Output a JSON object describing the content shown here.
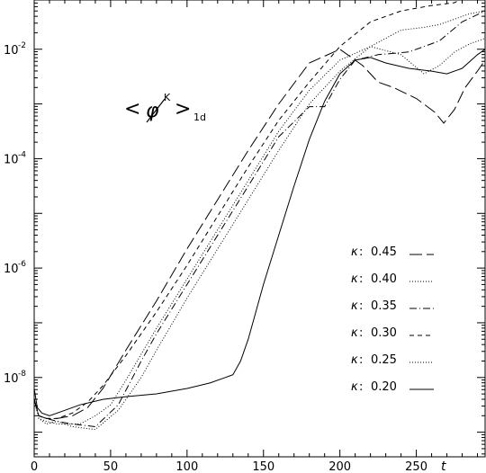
{
  "chart_data": {
    "type": "line",
    "title": "",
    "xlabel": "t",
    "ylabel": "",
    "xlim": [
      0,
      295
    ],
    "ylim_log10": [
      -9.45,
      -1.1
    ],
    "y_scale": "log",
    "x_ticks": [
      {
        "value": 0,
        "label": "0"
      },
      {
        "value": 50,
        "label": "50"
      },
      {
        "value": 100,
        "label": "100"
      },
      {
        "value": 150,
        "label": "150"
      },
      {
        "value": 200,
        "label": "200"
      },
      {
        "value": 250,
        "label": "250"
      }
    ],
    "y_ticks": [
      {
        "log10": -2,
        "base": "10",
        "exp": "-2"
      },
      {
        "log10": -4,
        "base": "10",
        "exp": "-4"
      },
      {
        "log10": -6,
        "base": "10",
        "exp": "-6"
      },
      {
        "log10": -8,
        "base": "10",
        "exp": "-8"
      }
    ],
    "annotation": {
      "open": "<",
      "phi": "φ",
      "sup": "K",
      "close": ">",
      "sub": "1d"
    },
    "legend": [
      {
        "kappa": "κ",
        "label": "0.45",
        "dash": "14 5"
      },
      {
        "kappa": "κ",
        "label": "0.40",
        "dash": "1 2"
      },
      {
        "kappa": "κ",
        "label": "0.35",
        "dash": "8 3 1 3"
      },
      {
        "kappa": "κ",
        "label": "0.30",
        "dash": "5 4"
      },
      {
        "kappa": "κ",
        "label": "0.25",
        "dash": "1 2"
      },
      {
        "kappa": "κ",
        "label": "0.20",
        "dash": ""
      }
    ],
    "series": [
      {
        "key": "k045",
        "dash": "14 5",
        "x": [
          0,
          3,
          8,
          15,
          25,
          35,
          45,
          60,
          80,
          100,
          120,
          140,
          160,
          180,
          200,
          215,
          225,
          235,
          250,
          262,
          268,
          275,
          282,
          290,
          295
        ],
        "y_log10": [
          -8.4,
          -8.7,
          -8.75,
          -8.75,
          -8.7,
          -8.55,
          -8.2,
          -7.5,
          -6.6,
          -5.65,
          -4.75,
          -3.85,
          -3.0,
          -2.25,
          -2.0,
          -2.3,
          -2.6,
          -2.7,
          -2.9,
          -3.15,
          -3.35,
          -3.1,
          -2.7,
          -2.4,
          -2.2
        ]
      },
      {
        "key": "k040",
        "dash": "1 2",
        "x": [
          0,
          3,
          8,
          15,
          30,
          40,
          50,
          60,
          80,
          100,
          120,
          140,
          160,
          180,
          200,
          220,
          240,
          255,
          265,
          275,
          285,
          295
        ],
        "y_log10": [
          -8.4,
          -8.75,
          -8.8,
          -8.85,
          -8.85,
          -8.7,
          -8.5,
          -8.05,
          -7.1,
          -6.2,
          -5.3,
          -4.4,
          -3.5,
          -2.75,
          -2.2,
          -1.95,
          -2.1,
          -2.45,
          -2.3,
          -2.05,
          -1.9,
          -1.8
        ]
      },
      {
        "key": "k035",
        "dash": "8 3 1 3",
        "x": [
          0,
          3,
          8,
          15,
          25,
          40,
          55,
          70,
          80,
          100,
          120,
          140,
          160,
          180,
          190,
          200,
          210,
          225,
          245,
          265,
          280,
          295
        ],
        "y_log10": [
          -8.4,
          -8.7,
          -8.75,
          -8.8,
          -8.85,
          -8.9,
          -8.5,
          -7.7,
          -7.2,
          -6.3,
          -5.4,
          -4.5,
          -3.6,
          -3.05,
          -3.05,
          -2.55,
          -2.2,
          -2.1,
          -2.05,
          -1.85,
          -1.5,
          -1.3
        ]
      },
      {
        "key": "k030",
        "dash": "5 4",
        "x": [
          0,
          3,
          8,
          15,
          25,
          35,
          45,
          60,
          80,
          100,
          120,
          140,
          160,
          180,
          200,
          220,
          240,
          260,
          275,
          285,
          295
        ],
        "y_log10": [
          -8.4,
          -8.7,
          -8.75,
          -8.75,
          -8.65,
          -8.45,
          -8.15,
          -7.6,
          -6.8,
          -5.95,
          -5.05,
          -4.15,
          -3.3,
          -2.6,
          -1.95,
          -1.5,
          -1.3,
          -1.2,
          -1.15,
          -1.0,
          -0.95
        ]
      },
      {
        "key": "k025",
        "dash": "1 2",
        "x": [
          0,
          3,
          8,
          15,
          25,
          40,
          55,
          70,
          80,
          100,
          120,
          140,
          160,
          180,
          200,
          220,
          240,
          255,
          265,
          275,
          285,
          295
        ],
        "y_log10": [
          -8.4,
          -8.75,
          -8.85,
          -8.8,
          -8.9,
          -8.95,
          -8.6,
          -8.0,
          -7.5,
          -6.55,
          -5.65,
          -4.75,
          -3.85,
          -3.0,
          -2.4,
          -1.95,
          -1.65,
          -1.6,
          -1.55,
          -1.45,
          -1.35,
          -1.3
        ]
      },
      {
        "key": "k020",
        "dash": "",
        "x": [
          0,
          2,
          5,
          10,
          20,
          30,
          45,
          60,
          80,
          100,
          115,
          125,
          130,
          135,
          140,
          145,
          150,
          160,
          170,
          180,
          190,
          200,
          210,
          220,
          230,
          245,
          260,
          270,
          280,
          290,
          295
        ],
        "y_log10": [
          -8.2,
          -8.55,
          -8.65,
          -8.7,
          -8.6,
          -8.5,
          -8.4,
          -8.35,
          -8.3,
          -8.2,
          -8.1,
          -8.0,
          -7.95,
          -7.7,
          -7.3,
          -6.8,
          -6.3,
          -5.4,
          -4.5,
          -3.65,
          -2.95,
          -2.45,
          -2.2,
          -2.15,
          -2.25,
          -2.35,
          -2.4,
          -2.45,
          -2.35,
          -2.1,
          -2.0
        ]
      }
    ]
  }
}
